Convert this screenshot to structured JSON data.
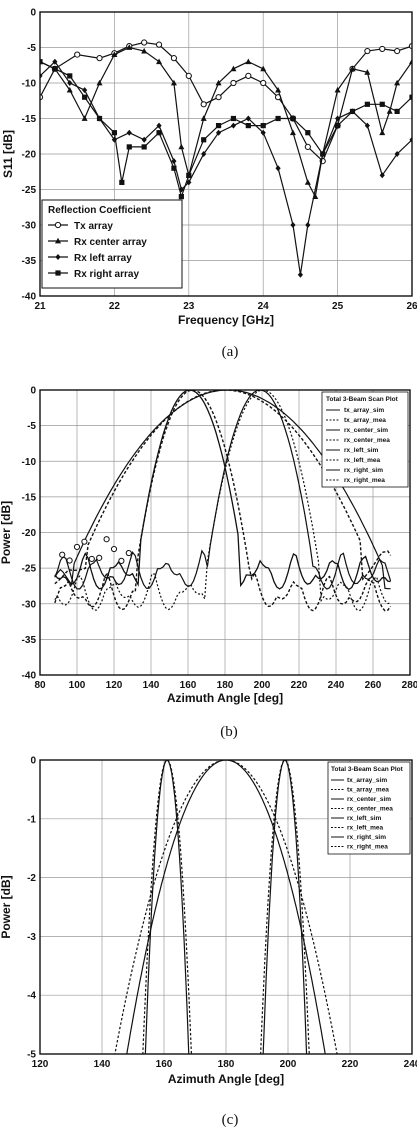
{
  "chart_data": [
    {
      "type": "line",
      "caption": "(a)",
      "xlabel": "Frequency [GHz]",
      "ylabel": "S11 [dB]",
      "xlim": [
        21,
        26
      ],
      "ylim": [
        -40,
        0
      ],
      "xticks": [
        "21",
        "22",
        "23",
        "24",
        "25",
        "26"
      ],
      "yticks": [
        "0",
        "-5",
        "-10",
        "-15",
        "-20",
        "-25",
        "-30",
        "-35",
        "-40"
      ],
      "grid": true,
      "legend": {
        "title": "Reflection Coefficient",
        "placement": "lower-left"
      },
      "series": [
        {
          "name": "Tx array",
          "marker": "circle-open",
          "points": [
            [
              21.0,
              -12
            ],
            [
              21.2,
              -8
            ],
            [
              21.5,
              -6
            ],
            [
              21.8,
              -6.5
            ],
            [
              22.0,
              -5.8
            ],
            [
              22.2,
              -4.8
            ],
            [
              22.4,
              -4.3
            ],
            [
              22.6,
              -4.6
            ],
            [
              22.8,
              -6.5
            ],
            [
              23.0,
              -9
            ],
            [
              23.2,
              -13
            ],
            [
              23.4,
              -12
            ],
            [
              23.6,
              -10
            ],
            [
              23.8,
              -9
            ],
            [
              24.0,
              -10
            ],
            [
              24.2,
              -12
            ],
            [
              24.4,
              -15
            ],
            [
              24.6,
              -19
            ],
            [
              24.8,
              -21
            ],
            [
              25.0,
              -16
            ],
            [
              25.2,
              -8
            ],
            [
              25.4,
              -5.5
            ],
            [
              25.6,
              -5.2
            ],
            [
              25.8,
              -5.5
            ],
            [
              26.0,
              -4.8
            ]
          ]
        },
        {
          "name": "Rx center array",
          "marker": "triangle",
          "points": [
            [
              21.0,
              -7
            ],
            [
              21.2,
              -8
            ],
            [
              21.4,
              -11
            ],
            [
              21.6,
              -15
            ],
            [
              21.8,
              -10
            ],
            [
              22.0,
              -6
            ],
            [
              22.2,
              -5
            ],
            [
              22.4,
              -5.5
            ],
            [
              22.6,
              -7
            ],
            [
              22.8,
              -10
            ],
            [
              22.9,
              -19
            ],
            [
              23.0,
              -23
            ],
            [
              23.2,
              -15
            ],
            [
              23.4,
              -10
            ],
            [
              23.6,
              -8
            ],
            [
              23.8,
              -7
            ],
            [
              24.0,
              -8
            ],
            [
              24.2,
              -11
            ],
            [
              24.4,
              -17
            ],
            [
              24.6,
              -24
            ],
            [
              24.7,
              -26
            ],
            [
              24.8,
              -20
            ],
            [
              25.0,
              -11
            ],
            [
              25.2,
              -8
            ],
            [
              25.4,
              -8.5
            ],
            [
              25.6,
              -17
            ],
            [
              25.7,
              -14
            ],
            [
              25.8,
              -10
            ],
            [
              26.0,
              -7
            ]
          ]
        },
        {
          "name": "Rx left array",
          "marker": "diamond",
          "points": [
            [
              21.0,
              -9
            ],
            [
              21.2,
              -7
            ],
            [
              21.4,
              -10
            ],
            [
              21.6,
              -11
            ],
            [
              21.8,
              -15
            ],
            [
              22.0,
              -18
            ],
            [
              22.2,
              -17
            ],
            [
              22.4,
              -18
            ],
            [
              22.6,
              -16
            ],
            [
              22.8,
              -21
            ],
            [
              22.9,
              -25
            ],
            [
              23.0,
              -24
            ],
            [
              23.2,
              -20
            ],
            [
              23.4,
              -17
            ],
            [
              23.6,
              -16
            ],
            [
              23.8,
              -15
            ],
            [
              24.0,
              -17
            ],
            [
              24.2,
              -22
            ],
            [
              24.4,
              -30
            ],
            [
              24.5,
              -37
            ],
            [
              24.6,
              -30
            ],
            [
              24.8,
              -20
            ],
            [
              25.0,
              -15
            ],
            [
              25.2,
              -14
            ],
            [
              25.4,
              -16
            ],
            [
              25.6,
              -23
            ],
            [
              25.8,
              -20
            ],
            [
              26.0,
              -18
            ]
          ]
        },
        {
          "name": "Rx right array",
          "marker": "square",
          "points": [
            [
              21.0,
              -7
            ],
            [
              21.2,
              -8
            ],
            [
              21.4,
              -9
            ],
            [
              21.6,
              -12
            ],
            [
              21.8,
              -15
            ],
            [
              22.0,
              -17
            ],
            [
              22.1,
              -24
            ],
            [
              22.2,
              -19
            ],
            [
              22.4,
              -19
            ],
            [
              22.6,
              -17
            ],
            [
              22.8,
              -22
            ],
            [
              22.9,
              -26
            ],
            [
              23.0,
              -23
            ],
            [
              23.2,
              -18
            ],
            [
              23.4,
              -16
            ],
            [
              23.6,
              -15
            ],
            [
              23.8,
              -16
            ],
            [
              24.0,
              -16
            ],
            [
              24.2,
              -15
            ],
            [
              24.4,
              -15
            ],
            [
              24.6,
              -17
            ],
            [
              24.8,
              -20
            ],
            [
              25.0,
              -16
            ],
            [
              25.2,
              -14
            ],
            [
              25.4,
              -13
            ],
            [
              25.6,
              -13
            ],
            [
              25.8,
              -14
            ],
            [
              26.0,
              -12
            ]
          ]
        }
      ]
    },
    {
      "type": "line",
      "caption": "(b)",
      "xlabel": "Azimuth Angle [deg]",
      "ylabel": "Power [dB]",
      "xlim": [
        80,
        280
      ],
      "ylim": [
        -40,
        0
      ],
      "xticks": [
        "80",
        "100",
        "120",
        "140",
        "160",
        "180",
        "200",
        "220",
        "240",
        "260",
        "280"
      ],
      "yticks": [
        "0",
        "-5",
        "-10",
        "-15",
        "-20",
        "-25",
        "-30",
        "-35",
        "-40"
      ],
      "grid": true,
      "legend": {
        "title": "Total 3-Beam Scan Plot",
        "placement": "top-right"
      },
      "beams": [
        {
          "peak": 161,
          "width": 20
        },
        {
          "peak": 180,
          "width": 55
        },
        {
          "peak": 199,
          "width": 20
        }
      ],
      "series": [
        {
          "name": "tx_array_sim"
        },
        {
          "name": "tx_array_mea"
        },
        {
          "name": "rx_center_sim"
        },
        {
          "name": "rx_center_mea"
        },
        {
          "name": "rx_left_sim"
        },
        {
          "name": "rx_left_mea"
        },
        {
          "name": "rx_right_sim"
        },
        {
          "name": "rx_right_mea"
        }
      ]
    },
    {
      "type": "line",
      "caption": "(c)",
      "xlabel": "Azimuth Angle [deg]",
      "ylabel": "Power [dB]",
      "xlim": [
        120,
        240
      ],
      "ylim": [
        -5,
        0
      ],
      "xticks": [
        "120",
        "140",
        "160",
        "180",
        "200",
        "220",
        "240"
      ],
      "yticks": [
        "0",
        "-1",
        "-2",
        "-3",
        "-4",
        "-5"
      ],
      "grid": true,
      "legend": {
        "title": "Total 3-Beam Scan Plot",
        "placement": "top-right"
      },
      "beams": [
        {
          "peak": 161,
          "half_width": 7
        },
        {
          "peak": 180,
          "half_width": 32
        },
        {
          "peak": 199,
          "half_width": 7
        }
      ],
      "series": [
        {
          "name": "tx_array_sim"
        },
        {
          "name": "tx_array_mea"
        },
        {
          "name": "rx_center_sim"
        },
        {
          "name": "rx_center_mea"
        },
        {
          "name": "rx_left_sim"
        },
        {
          "name": "rx_left_mea"
        },
        {
          "name": "rx_right_sim"
        },
        {
          "name": "rx_right_mea"
        }
      ]
    }
  ]
}
